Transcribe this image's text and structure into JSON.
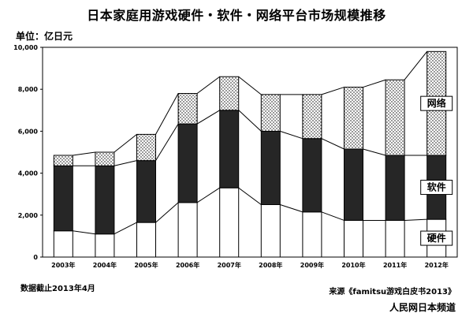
{
  "title": "日本家庭用游戏硬件・软件・网络平台市场规模推移",
  "unit_label": "单位：亿日元",
  "footnote": "数据截止2013年4月",
  "source": "来源《famitsu游戏白皮书2013》",
  "credit": "人民网日本频道",
  "colors": {
    "hardware": "#ffffff",
    "software": "#262626",
    "network_pattern": "dotted",
    "axis": "#000000"
  },
  "chart_data": {
    "type": "bar",
    "stacked": true,
    "categories": [
      "2003年",
      "2004年",
      "2005年",
      "2006年",
      "2007年",
      "2008年",
      "2009年",
      "2010年",
      "2011年",
      "2012年"
    ],
    "ylim": [
      0,
      10000
    ],
    "yticks": [
      0,
      2000,
      4000,
      6000,
      8000,
      10000
    ],
    "ytick_labels": [
      "0",
      "2,000",
      "4,000",
      "6,000",
      "8,000",
      "10,000"
    ],
    "grid": false,
    "series": [
      {
        "name": "硬件",
        "values": [
          1250,
          1100,
          1650,
          2600,
          3300,
          2500,
          2150,
          1750,
          1750,
          1800
        ]
      },
      {
        "name": "软件",
        "values": [
          3100,
          3250,
          2950,
          3750,
          3700,
          3500,
          3500,
          3400,
          3100,
          3050
        ]
      },
      {
        "name": "网络",
        "values": [
          500,
          650,
          1250,
          1450,
          1600,
          1750,
          2100,
          2950,
          3600,
          4950
        ]
      }
    ]
  }
}
